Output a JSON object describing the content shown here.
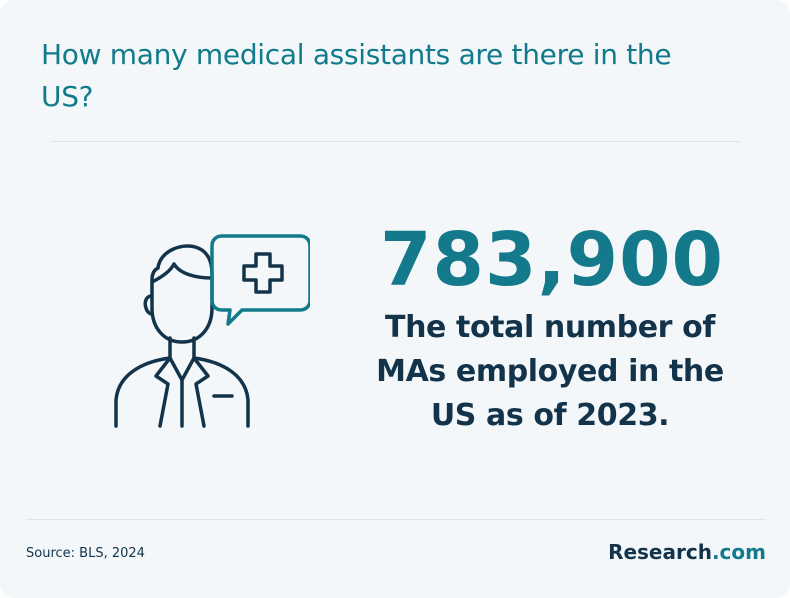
{
  "header": {
    "title": "How many medical assistants are there in the US?"
  },
  "stat": {
    "value": "783,900",
    "caption": "The total number of MAs employed in the US as of 2023."
  },
  "footer": {
    "source": "Source: BLS, 2024",
    "brand_name": "Research",
    "brand_suffix": ".com"
  },
  "icon": {
    "name": "medical-assistant-icon",
    "stroke_color": "#13334a",
    "accent_color": "#117a8b"
  }
}
